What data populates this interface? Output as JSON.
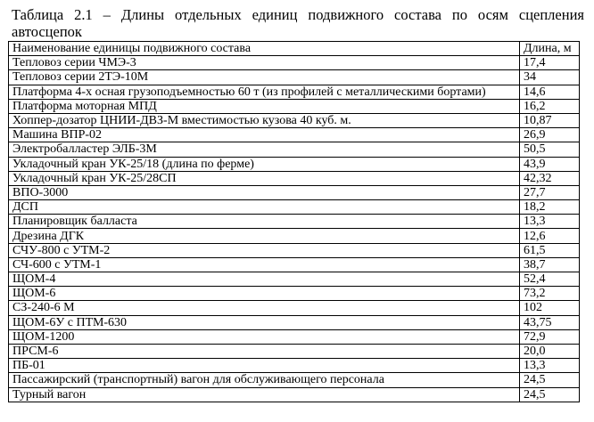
{
  "caption": "Таблица 2.1 – Длины отдельных единиц подвижного состава по осям сцепления автосцепок",
  "table": {
    "headers": [
      "Наименование единицы подвижного состава",
      "Длина, м"
    ],
    "rows": [
      [
        "Тепловоз серии  ЧМЭ-3",
        "17,4"
      ],
      [
        "Тепловоз серии  2ТЭ-10М",
        "34"
      ],
      [
        "Платформа 4-х осная грузоподъемностью 60 т (из профилей с металлическими бортами)",
        "14,6"
      ],
      [
        "Платформа моторная МПД",
        "16,2"
      ],
      [
        "Хоппер-дозатор  ЦНИИ-ДВЗ-М  вместимостью  кузова 40 куб. м.",
        "10,87"
      ],
      [
        "Машина ВПР-02",
        "26,9"
      ],
      [
        "Электробалластер  ЭЛБ-3М",
        "50,5"
      ],
      [
        "Укладочный кран УК-25/18 (длина по ферме)",
        "43,9"
      ],
      [
        "Укладочный кран УК-25/28СП",
        "42,32"
      ],
      [
        "ВПО-3000",
        "27,7"
      ],
      [
        "ДСП",
        "18,2"
      ],
      [
        "Планировщик балласта",
        "13,3"
      ],
      [
        "Дрезина  ДГК",
        "12,6"
      ],
      [
        "СЧУ-800 с УТМ-2",
        "61,5"
      ],
      [
        "СЧ-600 с УТМ-1",
        "38,7"
      ],
      [
        "ЩОМ-4",
        "52,4"
      ],
      [
        "ЩОМ-6",
        "73,2"
      ],
      [
        "СЗ-240-6 М",
        "102"
      ],
      [
        "ЩОМ-6У с ПТМ-630",
        "43,75"
      ],
      [
        "ЩОМ-1200",
        "72,9"
      ],
      [
        "ПРСМ-6",
        "20,0"
      ],
      [
        "ПБ-01",
        "13,3"
      ],
      [
        "Пассажирский (транспортный) вагон для обслуживающего персонала",
        "24,5"
      ],
      [
        "Турный вагон",
        "24,5"
      ]
    ]
  }
}
